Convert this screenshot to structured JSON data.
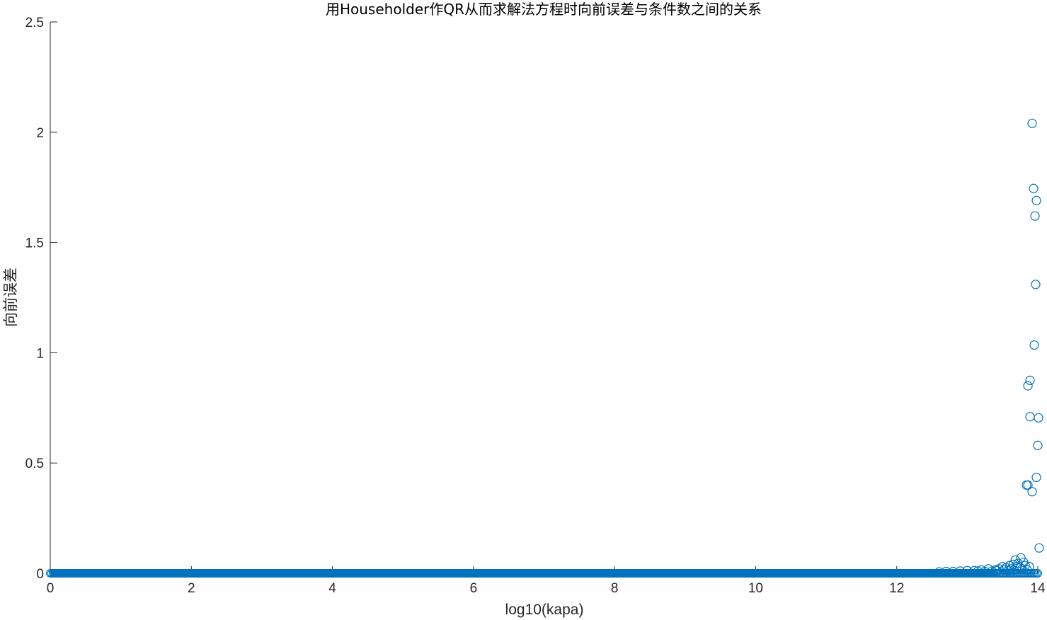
{
  "chart_data": {
    "type": "scatter",
    "title": "用Householder作QR从而求解法方程时向前误差与条件数之间的关系",
    "xlabel": "log10(kapa)",
    "ylabel": "向前误差",
    "xlim": [
      0,
      14
    ],
    "ylim": [
      0,
      2.5
    ],
    "xticks": [
      "0",
      "2",
      "4",
      "6",
      "8",
      "10",
      "12",
      "14"
    ],
    "yticks": [
      "0",
      "0.5",
      "1",
      "1.5",
      "2",
      "2.5"
    ],
    "grid": false,
    "marker": "open-circle",
    "marker_color": "#0072BD",
    "series": [
      {
        "points": [
          [
            13.92,
            2.04
          ],
          [
            13.94,
            1.745
          ],
          [
            13.98,
            1.69
          ],
          [
            13.96,
            1.62
          ],
          [
            13.97,
            1.31
          ],
          [
            13.95,
            1.035
          ],
          [
            13.89,
            0.875
          ],
          [
            13.86,
            0.85
          ],
          [
            13.89,
            0.71
          ],
          [
            14.01,
            0.705
          ],
          [
            14.0,
            0.58
          ],
          [
            13.98,
            0.435
          ],
          [
            13.84,
            0.4
          ],
          [
            13.86,
            0.4
          ],
          [
            13.92,
            0.37
          ],
          [
            14.02,
            0.115
          ],
          [
            13.76,
            0.07
          ],
          [
            13.68,
            0.06
          ],
          [
            13.72,
            0.045
          ],
          [
            13.8,
            0.05
          ],
          [
            13.65,
            0.04
          ],
          [
            13.7,
            0.03
          ],
          [
            13.6,
            0.035
          ],
          [
            13.5,
            0.03
          ],
          [
            13.55,
            0.025
          ],
          [
            13.45,
            0.02
          ],
          [
            13.62,
            0.02
          ],
          [
            13.75,
            0.025
          ],
          [
            13.82,
            0.035
          ],
          [
            13.78,
            0.02
          ],
          [
            13.4,
            0.015
          ],
          [
            13.3,
            0.02
          ],
          [
            13.2,
            0.015
          ],
          [
            13.1,
            0.012
          ],
          [
            13.0,
            0.012
          ],
          [
            12.9,
            0.01
          ],
          [
            12.8,
            0.008
          ],
          [
            12.7,
            0.008
          ],
          [
            12.6,
            0.006
          ],
          [
            13.35,
            0.01
          ],
          [
            13.15,
            0.01
          ],
          [
            13.25,
            0.008
          ],
          [
            13.58,
            0.012
          ],
          [
            13.66,
            0.015
          ],
          [
            13.85,
            0.015
          ],
          [
            13.88,
            0.03
          ],
          [
            13.52,
            0.015
          ],
          [
            13.42,
            0.012
          ]
        ],
        "dense_band": {
          "x_range": [
            0,
            14
          ],
          "y": 0
        }
      }
    ]
  }
}
